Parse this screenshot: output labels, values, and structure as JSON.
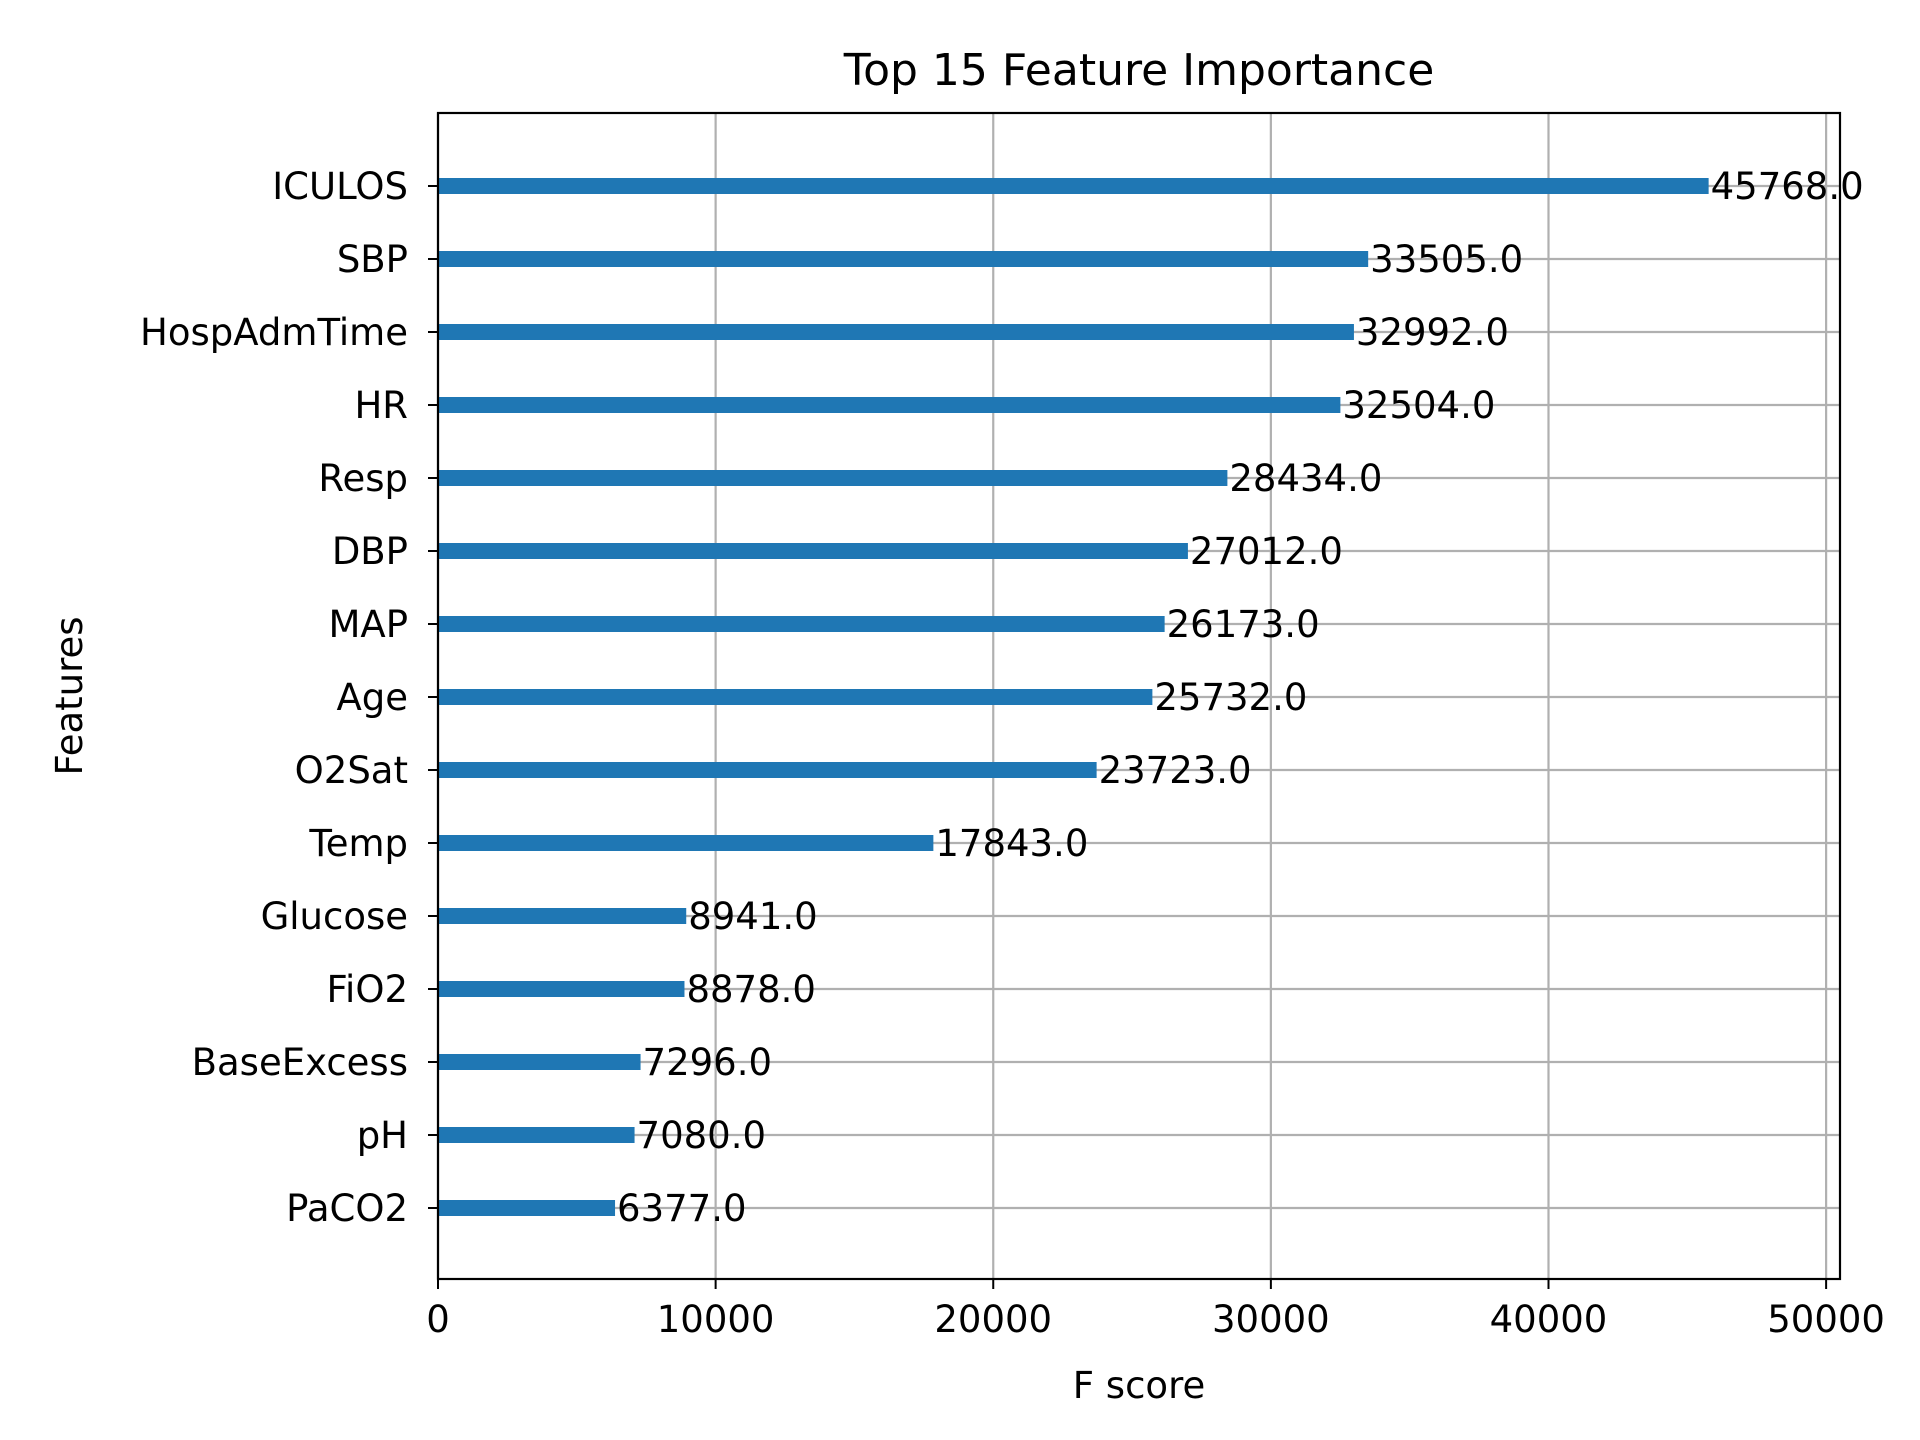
{
  "chart_data": {
    "type": "bar",
    "orientation": "horizontal",
    "title": "Top 15 Feature Importance",
    "xlabel": "F score",
    "ylabel": "Features",
    "xlim": [
      0,
      50500
    ],
    "xticks": [
      0,
      10000,
      20000,
      30000,
      40000,
      50000
    ],
    "xtick_labels": [
      "0",
      "10000",
      "20000",
      "30000",
      "40000",
      "50000"
    ],
    "grid": true,
    "bar_color": "#1f77b4",
    "categories": [
      "ICULOS",
      "SBP",
      "HospAdmTime",
      "HR",
      "Resp",
      "DBP",
      "MAP",
      "Age",
      "O2Sat",
      "Temp",
      "Glucose",
      "FiO2",
      "BaseExcess",
      "pH",
      "PaCO2"
    ],
    "values": [
      45768,
      33505,
      32992,
      32504,
      28434,
      27012,
      26173,
      25732,
      23723,
      17843,
      8941,
      8878,
      7296,
      7080,
      6377
    ],
    "value_labels": [
      "45768.0",
      "33505.0",
      "32992.0",
      "32504.0",
      "28434.0",
      "27012.0",
      "26173.0",
      "25732.0",
      "23723.0",
      "17843.0",
      "8941.0",
      "8878.0",
      "7296.0",
      "7080.0",
      "6377.0"
    ]
  }
}
